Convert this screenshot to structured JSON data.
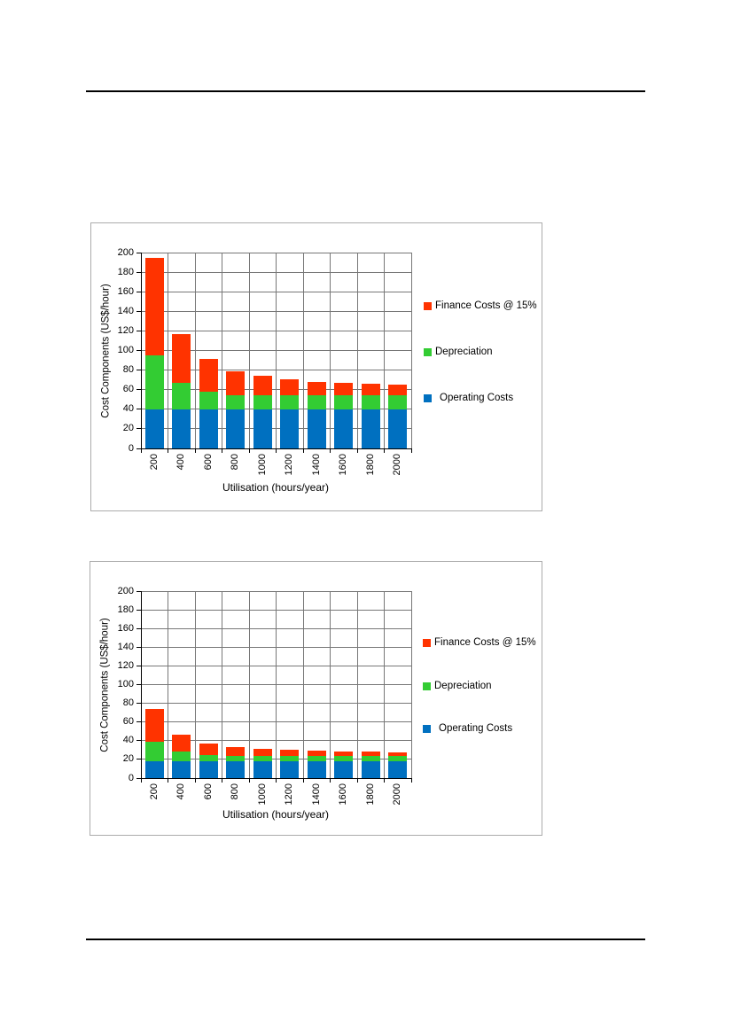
{
  "page": {
    "type": "document-page",
    "background": "#FFFFFF",
    "rule_color": "#000000"
  },
  "chart_data": [
    {
      "type": "bar",
      "stacked": true,
      "title": "",
      "categories": [
        "200",
        "400",
        "600",
        "800",
        "1000",
        "1200",
        "1400",
        "1600",
        "1800",
        "2000"
      ],
      "series": [
        {
          "name": "Operating Costs",
          "color": "#0070C0",
          "values": [
            40,
            40,
            40,
            40,
            40,
            40,
            40,
            40,
            40,
            40
          ]
        },
        {
          "name": "Depreciation",
          "color": "#33CC33",
          "values": [
            55,
            27,
            18,
            14,
            14,
            14,
            14,
            14,
            14,
            14
          ]
        },
        {
          "name": "Finance Costs @ 15%",
          "color": "#FF3300",
          "values": [
            100,
            50,
            33,
            25,
            20,
            17,
            14,
            13,
            12,
            11
          ]
        }
      ],
      "xlabel": "Utilisation (hours/year)",
      "ylabel": "Cost Components (US$/hour)",
      "ylim": [
        0,
        200
      ],
      "ytick_step": 20,
      "yticks": [
        0,
        20,
        40,
        60,
        80,
        100,
        120,
        140,
        160,
        180,
        200
      ],
      "grid": true,
      "gridline_color": "#777777",
      "axis_color": "#000000",
      "legend_position": "right",
      "legend_order_top_to_bottom": [
        "Finance Costs @ 15%",
        "Depreciation",
        "Operating Costs"
      ]
    },
    {
      "type": "bar",
      "stacked": true,
      "title": "",
      "categories": [
        "200",
        "400",
        "600",
        "800",
        "1000",
        "1200",
        "1400",
        "1600",
        "1800",
        "2000"
      ],
      "series": [
        {
          "name": "Operating Costs",
          "color": "#0070C0",
          "values": [
            18,
            18,
            18,
            18,
            18,
            18,
            18,
            18,
            18,
            18
          ]
        },
        {
          "name": "Depreciation",
          "color": "#33CC33",
          "values": [
            21,
            10,
            7,
            6,
            6,
            6,
            6,
            6,
            6,
            6
          ]
        },
        {
          "name": "Finance Costs @ 15%",
          "color": "#FF3300",
          "values": [
            35,
            18,
            12,
            9,
            7,
            6,
            5.5,
            4.5,
            4,
            3.5
          ]
        }
      ],
      "xlabel": "Utilisation (hours/year)",
      "ylabel": "Cost Components (US$/hour)",
      "ylim": [
        0,
        200
      ],
      "ytick_step": 20,
      "yticks": [
        0,
        20,
        40,
        60,
        80,
        100,
        120,
        140,
        160,
        180,
        200
      ],
      "grid": true,
      "gridline_color": "#777777",
      "axis_color": "#000000",
      "legend_position": "right",
      "legend_order_top_to_bottom": [
        "Finance Costs @ 15%",
        "Depreciation",
        "Operating Costs"
      ]
    }
  ]
}
